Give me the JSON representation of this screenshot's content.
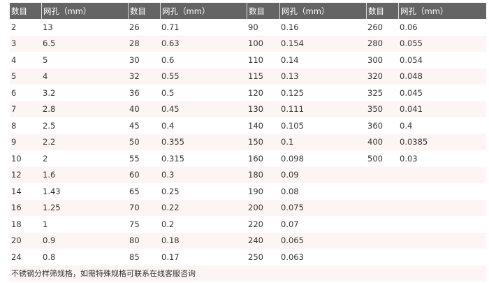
{
  "header": [
    "数目",
    "网孔（mm）",
    "数目",
    "网孔（mm）",
    "数目",
    "网孔（mm）",
    "数目",
    "网孔（mm）"
  ],
  "rows": [
    [
      "2",
      "13",
      "26",
      "0.71",
      "90",
      "0.16",
      "260",
      "0.06"
    ],
    [
      "3",
      "6.5",
      "28",
      "0.63",
      "100",
      "0.154",
      "280",
      "0.055"
    ],
    [
      "4",
      "5",
      "30",
      "0.6",
      "110",
      "0.14",
      "300",
      "0.054"
    ],
    [
      "5",
      "4",
      "32",
      "0.55",
      "115",
      "0.13",
      "320",
      "0.048"
    ],
    [
      "6",
      "3.2",
      "36",
      "0.5",
      "120",
      "0.125",
      "325",
      "0.045"
    ],
    [
      "7",
      "2.8",
      "40",
      "0.45",
      "130",
      "0.111",
      "350",
      "0.041"
    ],
    [
      "8",
      "2.5",
      "45",
      "0.4",
      "140",
      "0.105",
      "360",
      "0.4"
    ],
    [
      "9",
      "2.2",
      "50",
      "0.355",
      "150",
      "0.1",
      "400",
      "0.0385"
    ],
    [
      "10",
      "2",
      "55",
      "0.315",
      "160",
      "0.098",
      "500",
      "0.03"
    ],
    [
      "12",
      "1.6",
      "60",
      "0.3",
      "180",
      "0.09",
      "",
      ""
    ],
    [
      "14",
      "1.43",
      "65",
      "0.25",
      "190",
      "0.08",
      "",
      ""
    ],
    [
      "16",
      "1.25",
      "70",
      "0.22",
      "200",
      "0.075",
      "",
      ""
    ],
    [
      "18",
      "1",
      "75",
      "0.2",
      "220",
      "0.07",
      "",
      ""
    ],
    [
      "20",
      "0.9",
      "80",
      "0.18",
      "240",
      "0.065",
      "",
      ""
    ],
    [
      "24",
      "0.8",
      "85",
      "0.17",
      "250",
      "0.063",
      "",
      ""
    ]
  ],
  "footer": "不锈钢分样筛规格，如需特殊规格可联系在线客服咨询"
}
